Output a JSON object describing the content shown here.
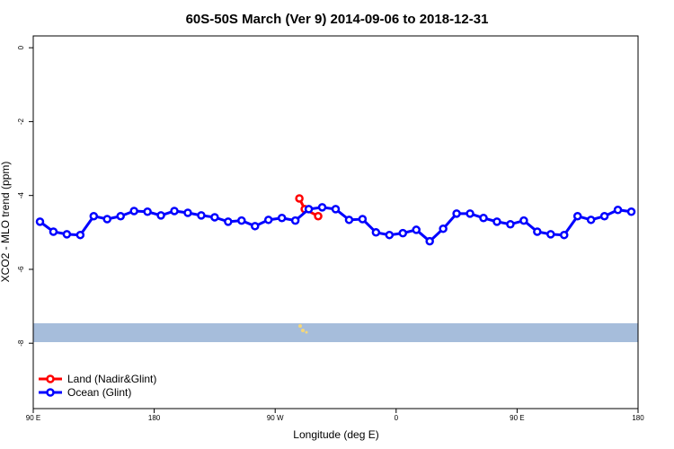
{
  "chart_data": {
    "type": "line",
    "title": "60S-50S March (Ver 9)   2014-09-06 to 2018-12-31",
    "x_label": "Longitude (deg E)",
    "y_label": "XCO2 - MLO trend (ppm)",
    "xlim": [
      90,
      540
    ],
    "xticks": [
      {
        "value": 90,
        "label": "90 E"
      },
      180,
      {
        "value": 270,
        "label": "90 W"
      },
      {
        "value": 360,
        "label": "0"
      },
      {
        "value": 450,
        "label": "90 E"
      },
      {
        "value": 540,
        "label": "180"
      }
    ],
    "ylim": [
      -9.77,
      0.32
    ],
    "yticks": [
      0,
      -2,
      -4,
      -6,
      -8
    ],
    "legend": "bottom-left",
    "series": [
      {
        "name": "Land (Nadir&Glint)",
        "color": "#ff0000",
        "x": [
          288,
          292,
          302
        ],
        "values": [
          -4.08,
          -4.37,
          -4.56
        ]
      },
      {
        "name": "Ocean (Glint)",
        "color": "#0000ff",
        "x": [
          95,
          105,
          115,
          125,
          135,
          145,
          155,
          165,
          175,
          185,
          195,
          205,
          215,
          225,
          235,
          245,
          255,
          265,
          275,
          285,
          295,
          305,
          315,
          325,
          335,
          345,
          355,
          365,
          375,
          385,
          395,
          405,
          415,
          425,
          435,
          445,
          455,
          465,
          475,
          485,
          495,
          505,
          515,
          525,
          535
        ],
        "values": [
          -4.71,
          -4.98,
          -5.05,
          -5.07,
          -4.56,
          -4.64,
          -4.56,
          -4.42,
          -4.44,
          -4.54,
          -4.42,
          -4.47,
          -4.54,
          -4.59,
          -4.71,
          -4.68,
          -4.83,
          -4.66,
          -4.61,
          -4.68,
          -4.37,
          -4.32,
          -4.37,
          -4.66,
          -4.64,
          -5.0,
          -5.07,
          -5.02,
          -4.93,
          -5.24,
          -4.9,
          -4.49,
          -4.49,
          -4.61,
          -4.71,
          -4.78,
          -4.68,
          -4.98,
          -5.05,
          -5.07,
          -4.56,
          -4.66,
          -4.56,
          -4.39,
          -4.44
        ]
      }
    ]
  }
}
